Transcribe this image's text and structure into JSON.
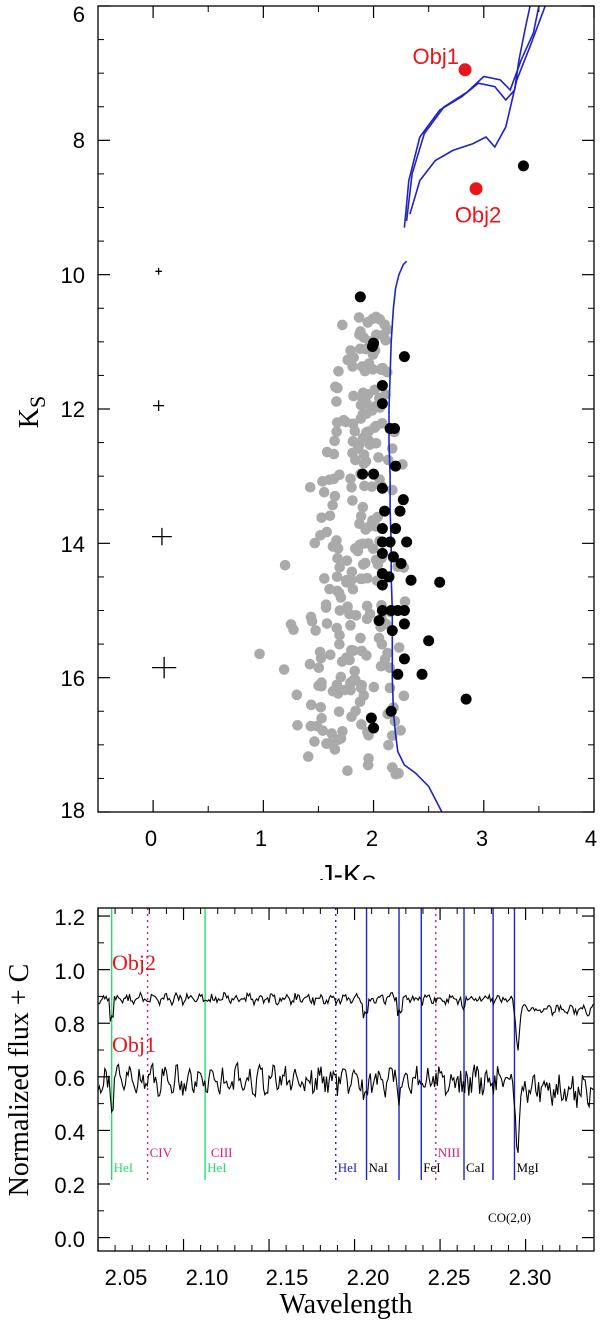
{
  "colors": {
    "red": "#e8151b",
    "blue": "#1f22c9",
    "green": "#24e06a",
    "magenta": "#e2157a",
    "grey": "#aaaaaa",
    "black": "#000000"
  },
  "chart_data": [
    {
      "type": "scatter",
      "xlabel": "J-K",
      "xlabel_sub": "S",
      "ylabel": "K",
      "ylabel_sub": "S",
      "xlim": [
        -0.5,
        4
      ],
      "ylim": [
        18,
        6
      ],
      "y_inverted": true,
      "xticks": [
        "0",
        "1",
        "2",
        "3",
        "4"
      ],
      "yticks": [
        "6",
        "8",
        "10",
        "12",
        "14",
        "16",
        "18"
      ],
      "labeled_points": [
        {
          "name": "Obj1",
          "x": 2.83,
          "y": 6.95,
          "color": "#e8151b"
        },
        {
          "name": "Obj2",
          "x": 2.93,
          "y": 8.72,
          "color": "#e8151b"
        }
      ],
      "error_bars": [
        {
          "x": 0.05,
          "y": 9.95,
          "dx": 0.03,
          "dy": 0.05
        },
        {
          "x": 0.05,
          "y": 11.95,
          "dx": 0.05,
          "dy": 0.08
        },
        {
          "x": 0.08,
          "y": 13.9,
          "dx": 0.09,
          "dy": 0.13
        },
        {
          "x": 0.1,
          "y": 15.85,
          "dx": 0.11,
          "dy": 0.16
        }
      ],
      "black_points": [
        [
          1.88,
          10.33
        ],
        [
          1.99,
          11.07
        ],
        [
          2.0,
          11.02
        ],
        [
          2.28,
          11.22
        ],
        [
          2.08,
          11.65
        ],
        [
          2.08,
          11.92
        ],
        [
          2.15,
          12.29
        ],
        [
          2.19,
          12.29
        ],
        [
          1.9,
          12.97
        ],
        [
          2.0,
          12.97
        ],
        [
          2.2,
          12.85
        ],
        [
          2.08,
          13.18
        ],
        [
          2.27,
          13.35
        ],
        [
          2.1,
          13.52
        ],
        [
          2.24,
          13.52
        ],
        [
          2.08,
          13.78
        ],
        [
          2.2,
          13.78
        ],
        [
          2.08,
          13.98
        ],
        [
          2.15,
          13.98
        ],
        [
          2.3,
          13.98
        ],
        [
          2.08,
          14.15
        ],
        [
          2.18,
          14.2
        ],
        [
          2.25,
          14.3
        ],
        [
          2.08,
          14.45
        ],
        [
          2.14,
          14.5
        ],
        [
          2.34,
          14.55
        ],
        [
          2.6,
          14.58
        ],
        [
          2.08,
          14.62
        ],
        [
          2.08,
          15.0
        ],
        [
          2.16,
          15.0
        ],
        [
          2.22,
          15.0
        ],
        [
          2.28,
          15.0
        ],
        [
          2.05,
          15.15
        ],
        [
          2.28,
          15.2
        ],
        [
          2.17,
          15.3
        ],
        [
          2.5,
          15.45
        ],
        [
          2.28,
          15.72
        ],
        [
          2.22,
          15.95
        ],
        [
          2.44,
          15.95
        ],
        [
          2.84,
          16.32
        ],
        [
          2.16,
          16.5
        ],
        [
          1.98,
          16.6
        ],
        [
          2.0,
          16.75
        ],
        [
          3.36,
          8.38
        ]
      ],
      "grey_cloud_count": 260,
      "isochrone": {
        "color": "#1f22c9",
        "ms_track": [
          [
            2.62,
            18.0
          ],
          [
            2.5,
            17.62
          ],
          [
            2.38,
            17.42
          ],
          [
            2.28,
            17.3
          ],
          [
            2.22,
            17.1
          ],
          [
            2.2,
            16.85
          ],
          [
            2.18,
            16.5
          ],
          [
            2.17,
            16.0
          ],
          [
            2.17,
            15.5
          ],
          [
            2.17,
            15.0
          ],
          [
            2.16,
            14.5
          ],
          [
            2.16,
            14.0
          ],
          [
            2.15,
            13.5
          ],
          [
            2.15,
            13.0
          ],
          [
            2.14,
            12.5
          ],
          [
            2.14,
            12.0
          ],
          [
            2.15,
            11.5
          ],
          [
            2.16,
            11.0
          ],
          [
            2.18,
            10.5
          ],
          [
            2.2,
            10.2
          ],
          [
            2.23,
            10.0
          ],
          [
            2.27,
            9.85
          ],
          [
            2.3,
            9.8
          ]
        ],
        "giant_tracks": [
          [
            [
              2.28,
              9.3
            ],
            [
              2.32,
              8.6
            ],
            [
              2.42,
              7.95
            ],
            [
              2.6,
              7.55
            ],
            [
              2.8,
              7.35
            ],
            [
              2.95,
              7.15
            ],
            [
              3.1,
              7.2
            ],
            [
              3.2,
              7.4
            ],
            [
              3.28,
              7.25
            ],
            [
              3.32,
              6.8
            ],
            [
              3.38,
              6.3
            ],
            [
              3.42,
              6.0
            ]
          ],
          [
            [
              2.3,
              9.2
            ],
            [
              2.35,
              8.5
            ],
            [
              2.46,
              7.9
            ],
            [
              2.64,
              7.5
            ],
            [
              2.85,
              7.28
            ],
            [
              3.0,
              7.05
            ],
            [
              3.15,
              7.1
            ],
            [
              3.24,
              7.25
            ],
            [
              3.34,
              6.8
            ],
            [
              3.45,
              6.4
            ],
            [
              3.5,
              6.0
            ]
          ],
          [
            [
              2.33,
              9.1
            ],
            [
              2.42,
              8.6
            ],
            [
              2.56,
              8.3
            ],
            [
              2.72,
              8.15
            ],
            [
              2.9,
              8.05
            ],
            [
              3.02,
              7.95
            ],
            [
              3.1,
              8.1
            ],
            [
              3.2,
              7.8
            ],
            [
              3.3,
              7.1
            ],
            [
              3.42,
              6.6
            ],
            [
              3.5,
              6.25
            ],
            [
              3.58,
              5.9
            ]
          ]
        ]
      }
    },
    {
      "type": "line",
      "xlabel": "Wavelength",
      "ylabel": "Normalized flux + C",
      "xlim": [
        2.05,
        2.34
      ],
      "ylim": [
        -0.05,
        1.23
      ],
      "xticks": [
        "2.05",
        "2.10",
        "2.15",
        "2.20",
        "2.25",
        "2.30"
      ],
      "yticks": [
        "0.0",
        "0.2",
        "0.4",
        "0.6",
        "0.8",
        "1.0",
        "1.2"
      ],
      "series": [
        {
          "name": "Obj2",
          "color": "#000000",
          "base": 0.89
        },
        {
          "name": "Obj1",
          "color": "#000000",
          "base": 0.59
        }
      ],
      "series_label_color": "#e8151b",
      "lines": [
        {
          "label": "HeI",
          "x": 2.058,
          "color": "#24e06a",
          "style": "solid"
        },
        {
          "label": "CIV",
          "x": 2.079,
          "color": "#e2157a",
          "style": "dotted"
        },
        {
          "label": "CIII",
          "x": 2.1148,
          "color": "#e2157a",
          "style": "none"
        },
        {
          "label": "HeI",
          "x": 2.1126,
          "color": "#24e06a",
          "style": "solid"
        },
        {
          "label": "HeI",
          "x": 2.189,
          "color": "#1f22c9",
          "style": "dotted"
        },
        {
          "label": "NaI",
          "x": 2.207,
          "color": "#000000",
          "style": "blue-solid"
        },
        {
          "label": "",
          "x": 2.226,
          "color": "#1f22c9",
          "style": "solid"
        },
        {
          "label": "FeI",
          "x": 2.239,
          "color": "#000000",
          "style": "blue-solid"
        },
        {
          "label": "NIII",
          "x": 2.2475,
          "color": "#e2157a",
          "style": "dotted"
        },
        {
          "label": "CaI",
          "x": 2.264,
          "color": "#000000",
          "style": "blue-solid"
        },
        {
          "label": "",
          "x": 2.281,
          "color": "#1f22c9",
          "style": "solid"
        },
        {
          "label": "MgI",
          "x": 2.2935,
          "color": "#000000",
          "style": "blue-solid"
        }
      ],
      "co_label": "CO(2,0)"
    }
  ]
}
